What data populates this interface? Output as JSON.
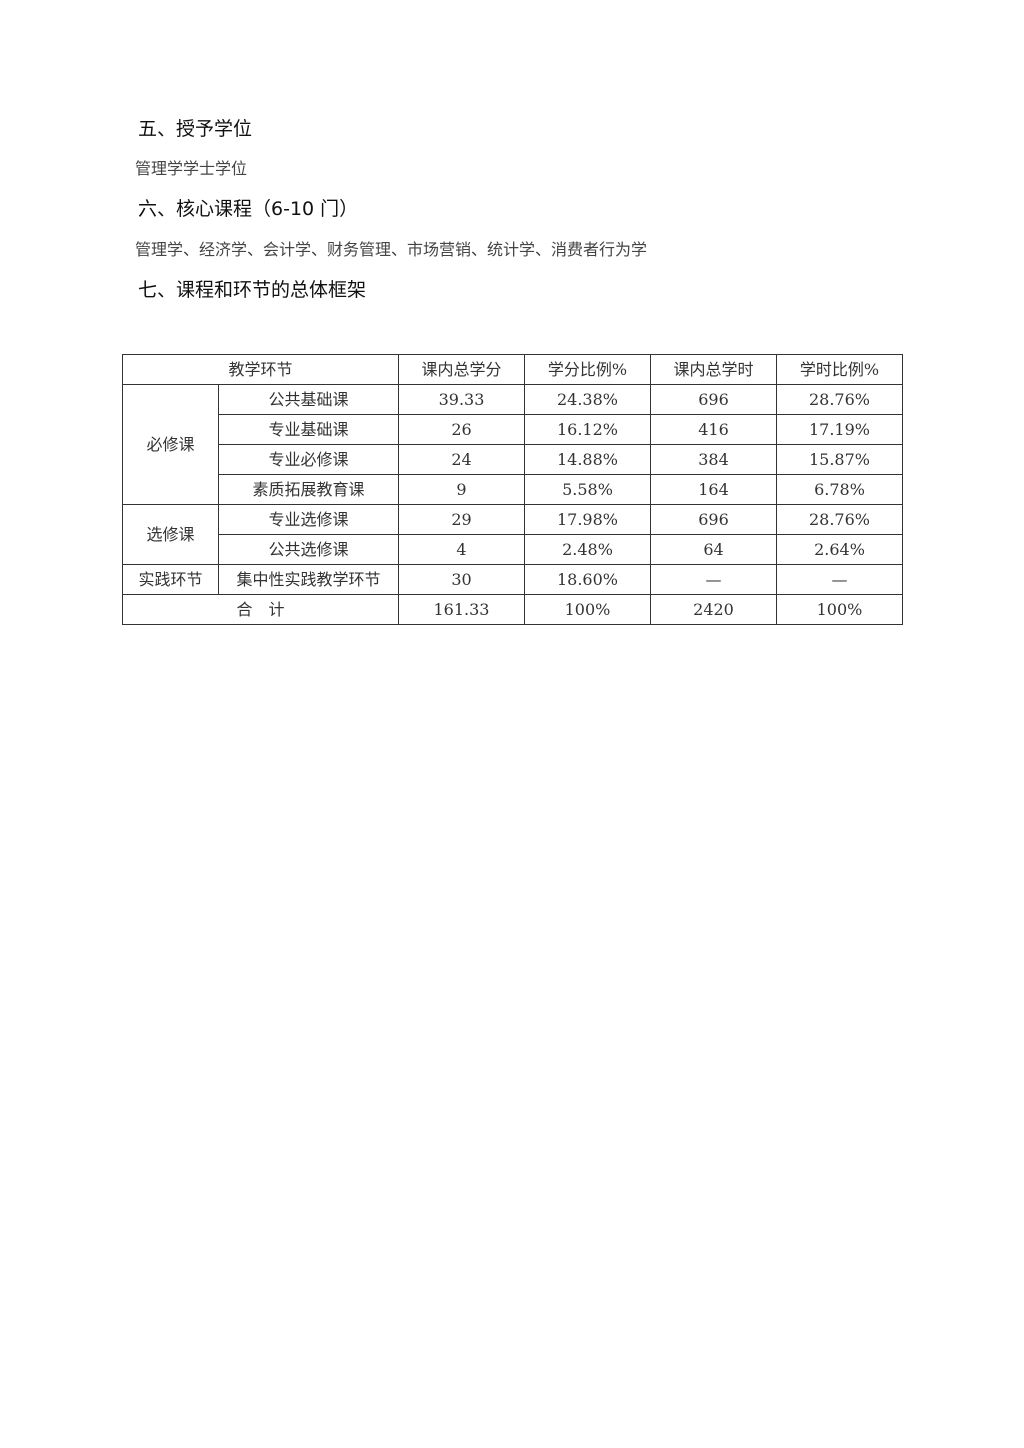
{
  "sections": [
    {
      "heading": "五、授予学位",
      "body": "管理学学士学位"
    },
    {
      "heading": "六、核心课程（6-10 门）",
      "body": "管理学、经济学、会计学、财务管理、市场营销、统计学、消费者行为学"
    },
    {
      "heading": "七、课程和环节的总体框架"
    }
  ],
  "table": {
    "headers": [
      "教学环节",
      "课内总学分",
      "学分比例%",
      "课内总学时",
      "学时比例%"
    ],
    "groups": [
      {
        "name": "必修课",
        "rows": [
          [
            "公共基础课",
            "39.33",
            "24.38%",
            "696",
            "28.76%"
          ],
          [
            "专业基础课",
            "26",
            "16.12%",
            "416",
            "17.19%"
          ],
          [
            "专业必修课",
            "24",
            "14.88%",
            "384",
            "15.87%"
          ],
          [
            "素质拓展教育课",
            "9",
            "5.58%",
            "164",
            "6.78%"
          ]
        ]
      },
      {
        "name": "选修课",
        "rows": [
          [
            "专业选修课",
            "29",
            "17.98%",
            "696",
            "28.76%"
          ],
          [
            "公共选修课",
            "4",
            "2.48%",
            "64",
            "2.64%"
          ]
        ]
      },
      {
        "name": "实践环节",
        "rows": [
          [
            "集中性实践教学环节",
            "30",
            "18.60%",
            "—",
            "—"
          ]
        ]
      }
    ],
    "total": [
      "合　计",
      "161.33",
      "100%",
      "2420",
      "100%"
    ]
  }
}
